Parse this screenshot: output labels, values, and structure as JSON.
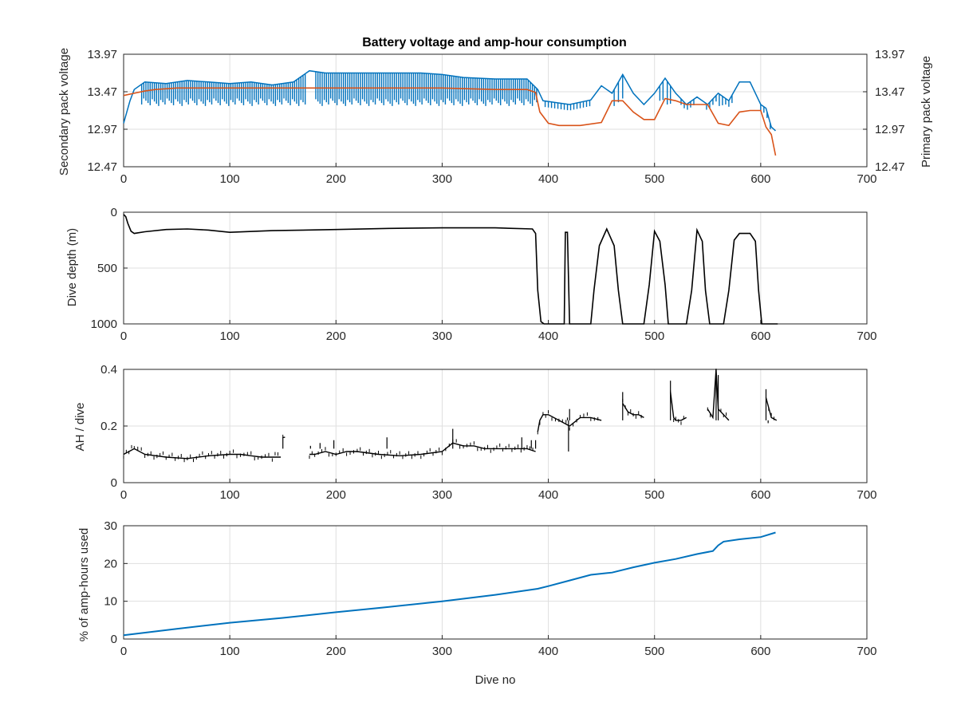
{
  "chart_data": [
    {
      "type": "line",
      "title": "Battery voltage and amp-hour consumption",
      "xlabel": "",
      "ylabel_left": "Secondary pack voltage",
      "ylabel_right": "Primary pack voltage",
      "xlim": [
        0,
        700
      ],
      "ylim": [
        12.47,
        13.97
      ],
      "x_ticks": [
        "0",
        "100",
        "200",
        "300",
        "400",
        "500",
        "600",
        "700"
      ],
      "y_ticks_left": [
        "12.47",
        "12.97",
        "13.47",
        "13.97"
      ],
      "y_ticks_right": [
        "12.47",
        "12.97",
        "13.47",
        "13.97"
      ],
      "grid": true,
      "series": [
        {
          "name": "Secondary pack voltage",
          "axis": "left",
          "color": "#0072BD",
          "x": [
            0,
            3,
            6,
            10,
            20,
            40,
            60,
            80,
            100,
            120,
            140,
            160,
            175,
            190,
            220,
            250,
            280,
            300,
            320,
            350,
            380,
            390,
            395,
            420,
            440,
            450,
            460,
            470,
            480,
            490,
            500,
            510,
            520,
            530,
            540,
            550,
            560,
            570,
            580,
            590,
            600,
            605,
            610,
            614
          ],
          "values": [
            13.05,
            13.2,
            13.35,
            13.5,
            13.6,
            13.58,
            13.62,
            13.6,
            13.58,
            13.6,
            13.56,
            13.6,
            13.75,
            13.72,
            13.72,
            13.72,
            13.72,
            13.7,
            13.66,
            13.64,
            13.64,
            13.5,
            13.35,
            13.3,
            13.36,
            13.55,
            13.45,
            13.7,
            13.45,
            13.3,
            13.45,
            13.65,
            13.45,
            13.3,
            13.4,
            13.3,
            13.45,
            13.35,
            13.6,
            13.6,
            13.3,
            13.25,
            13.0,
            12.95
          ],
          "noise_markers": [
            17,
            19,
            21,
            23,
            25,
            27,
            29,
            31,
            33,
            35,
            37,
            39,
            41,
            43,
            45,
            47,
            49,
            51,
            53,
            55,
            57,
            59,
            61,
            63,
            65,
            67,
            69,
            71,
            73,
            75,
            77,
            79,
            81,
            83,
            85,
            87,
            89,
            91,
            93,
            95,
            97,
            99,
            101,
            103,
            105,
            107,
            109,
            111,
            113,
            115,
            117,
            119,
            121,
            123,
            125,
            127,
            129,
            131,
            133,
            135,
            137,
            139,
            141,
            143,
            145,
            147,
            149,
            151,
            153,
            155,
            157,
            159,
            161,
            163,
            165,
            167,
            169,
            171,
            181,
            183,
            185,
            187,
            189,
            191,
            193,
            195,
            197,
            199,
            201,
            203,
            205,
            207,
            209,
            211,
            213,
            215,
            217,
            219,
            221,
            223,
            225,
            227,
            229,
            231,
            233,
            235,
            237,
            239,
            241,
            243,
            245,
            247,
            249,
            251,
            253,
            255,
            257,
            259,
            261,
            263,
            265,
            267,
            269,
            271,
            273,
            275,
            277,
            279,
            281,
            283,
            285,
            287,
            289,
            291,
            293,
            295,
            297,
            299,
            301,
            303,
            305,
            307,
            309,
            311,
            313,
            315,
            317,
            319,
            321,
            323,
            325,
            327,
            329,
            331,
            333,
            335,
            337,
            339,
            341,
            343,
            345,
            347,
            349,
            351,
            353,
            355,
            357,
            359,
            361,
            363,
            365,
            367,
            369,
            371,
            373,
            375,
            377,
            379,
            381,
            383,
            385,
            387,
            389,
            397,
            400,
            403,
            406,
            409,
            412,
            415,
            418,
            421,
            424,
            427,
            430,
            433,
            436,
            439,
            462,
            466,
            470,
            505,
            508,
            512,
            515,
            525,
            528,
            531,
            534,
            537,
            549,
            552,
            555,
            558,
            561,
            564,
            567,
            570,
            573,
            600,
            603,
            606,
            609
          ],
          "noise_low": 13.28
        },
        {
          "name": "Primary pack voltage",
          "axis": "right",
          "color": "#D95319",
          "x": [
            0,
            10,
            20,
            30,
            50,
            100,
            150,
            200,
            250,
            300,
            350,
            380,
            388,
            392,
            400,
            410,
            430,
            450,
            460,
            470,
            480,
            490,
            500,
            510,
            520,
            530,
            540,
            550,
            560,
            570,
            580,
            590,
            600,
            605,
            610,
            614
          ],
          "values": [
            13.42,
            13.45,
            13.48,
            13.5,
            13.52,
            13.52,
            13.52,
            13.52,
            13.52,
            13.52,
            13.5,
            13.5,
            13.46,
            13.2,
            13.05,
            13.02,
            13.02,
            13.06,
            13.35,
            13.35,
            13.2,
            13.1,
            13.1,
            13.38,
            13.35,
            13.3,
            13.3,
            13.3,
            13.05,
            13.02,
            13.2,
            13.22,
            13.22,
            13.0,
            12.9,
            12.62
          ]
        }
      ]
    },
    {
      "type": "line",
      "title": "",
      "xlabel": "",
      "ylabel": "Dive depth (m)",
      "xlim": [
        0,
        700
      ],
      "ylim": [
        0,
        1000
      ],
      "y_reversed": true,
      "x_ticks": [
        "0",
        "100",
        "200",
        "300",
        "400",
        "500",
        "600",
        "700"
      ],
      "y_ticks": [
        "0",
        "500",
        "1000"
      ],
      "grid": true,
      "series": [
        {
          "name": "Dive depth",
          "color": "#000000",
          "x": [
            0,
            2,
            4,
            7,
            10,
            20,
            40,
            60,
            80,
            100,
            140,
            200,
            250,
            300,
            350,
            385,
            388,
            390,
            393,
            396,
            400,
            415,
            416,
            418,
            420,
            421,
            440,
            443,
            448,
            455,
            462,
            466,
            470,
            480,
            490,
            495,
            500,
            505,
            510,
            513,
            517,
            520,
            530,
            535,
            540,
            545,
            548,
            552,
            565,
            570,
            575,
            580,
            590,
            595,
            598,
            601,
            608,
            616
          ],
          "values": [
            20,
            40,
            100,
            170,
            190,
            175,
            155,
            150,
            160,
            180,
            165,
            155,
            145,
            140,
            140,
            150,
            190,
            700,
            980,
            1000,
            1000,
            1000,
            180,
            180,
            1000,
            1000,
            1000,
            700,
            300,
            150,
            300,
            700,
            1000,
            1000,
            1000,
            650,
            170,
            260,
            650,
            1000,
            1000,
            1000,
            1000,
            700,
            160,
            260,
            700,
            1000,
            1000,
            700,
            250,
            190,
            190,
            260,
            700,
            1000,
            1000,
            1000
          ]
        }
      ]
    },
    {
      "type": "line",
      "title": "",
      "xlabel": "",
      "ylabel": "AH / dive",
      "xlim": [
        0,
        700
      ],
      "ylim": [
        0,
        0.4
      ],
      "x_ticks": [
        "0",
        "100",
        "200",
        "300",
        "400",
        "500",
        "600",
        "700"
      ],
      "y_ticks": [
        "0",
        "0.2",
        "0.4"
      ],
      "grid": true,
      "series": [
        {
          "name": "AH per dive",
          "color": "#000000",
          "segments": [
            {
              "x": [
                0,
                5,
                10,
                20,
                40,
                60,
                80,
                100,
                110,
                120,
                130,
                140,
                148
              ],
              "values": [
                0.1,
                0.11,
                0.12,
                0.1,
                0.09,
                0.085,
                0.095,
                0.1,
                0.1,
                0.095,
                0.09,
                0.09,
                0.09
              ]
            },
            {
              "x": [
                150,
                152
              ],
              "values": [
                0.16,
                0.16
              ]
            },
            {
              "x": [
                175,
                180,
                190,
                200,
                210,
                220,
                240,
                260,
                280,
                300,
                310,
                320,
                330,
                340,
                360,
                380,
                388
              ],
              "values": [
                0.1,
                0.1,
                0.11,
                0.1,
                0.11,
                0.11,
                0.1,
                0.095,
                0.1,
                0.11,
                0.14,
                0.13,
                0.13,
                0.12,
                0.12,
                0.12,
                0.11
              ]
            },
            {
              "x": [
                390,
                392,
                395,
                400,
                410,
                420,
                430,
                440,
                450
              ],
              "values": [
                0.18,
                0.22,
                0.24,
                0.24,
                0.22,
                0.2,
                0.23,
                0.23,
                0.22
              ]
            },
            {
              "x": [
                470,
                475,
                480,
                485,
                490
              ],
              "values": [
                0.28,
                0.25,
                0.24,
                0.24,
                0.23
              ]
            },
            {
              "x": [
                515,
                518,
                520,
                525,
                530
              ],
              "values": [
                0.32,
                0.23,
                0.22,
                0.22,
                0.23
              ]
            },
            {
              "x": [
                550,
                555,
                558,
                560,
                565,
                570
              ],
              "values": [
                0.26,
                0.23,
                0.4,
                0.26,
                0.24,
                0.22
              ]
            },
            {
              "x": [
                605,
                610,
                615
              ],
              "values": [
                0.3,
                0.23,
                0.22
              ]
            }
          ],
          "spikes": [
            [
              150,
              0.16
            ],
            [
              176,
              0.13
            ],
            [
              185,
              0.14
            ],
            [
              198,
              0.15
            ],
            [
              248,
              0.16
            ],
            [
              310,
              0.19
            ],
            [
              375,
              0.16
            ],
            [
              384,
              0.15
            ],
            [
              388,
              0.15
            ],
            [
              418,
              0.23
            ],
            [
              419,
              0.11
            ],
            [
              420,
              0.26
            ],
            [
              470,
              0.32
            ],
            [
              515,
              0.36
            ],
            [
              558,
              0.42
            ],
            [
              560,
              0.38
            ],
            [
              605,
              0.33
            ],
            [
              607,
              0.21
            ]
          ]
        }
      ]
    },
    {
      "type": "line",
      "title": "",
      "xlabel": "Dive no",
      "ylabel": "% of amp-hours used",
      "xlim": [
        0,
        700
      ],
      "ylim": [
        0,
        30
      ],
      "x_ticks": [
        "0",
        "100",
        "200",
        "300",
        "400",
        "500",
        "600",
        "700"
      ],
      "y_ticks": [
        "0",
        "10",
        "20",
        "30"
      ],
      "grid": true,
      "series": [
        {
          "name": "% of amp-hours used",
          "color": "#0072BD",
          "x": [
            0,
            50,
            100,
            150,
            200,
            250,
            300,
            350,
            390,
            400,
            420,
            440,
            460,
            480,
            500,
            520,
            540,
            555,
            560,
            565,
            580,
            600,
            614
          ],
          "values": [
            1,
            2.7,
            4.3,
            5.6,
            7.1,
            8.5,
            10,
            11.7,
            13.3,
            14,
            15.5,
            17,
            17.6,
            19,
            20.2,
            21.2,
            22.5,
            23.3,
            24.8,
            25.8,
            26.4,
            27,
            28.2
          ]
        }
      ]
    }
  ]
}
